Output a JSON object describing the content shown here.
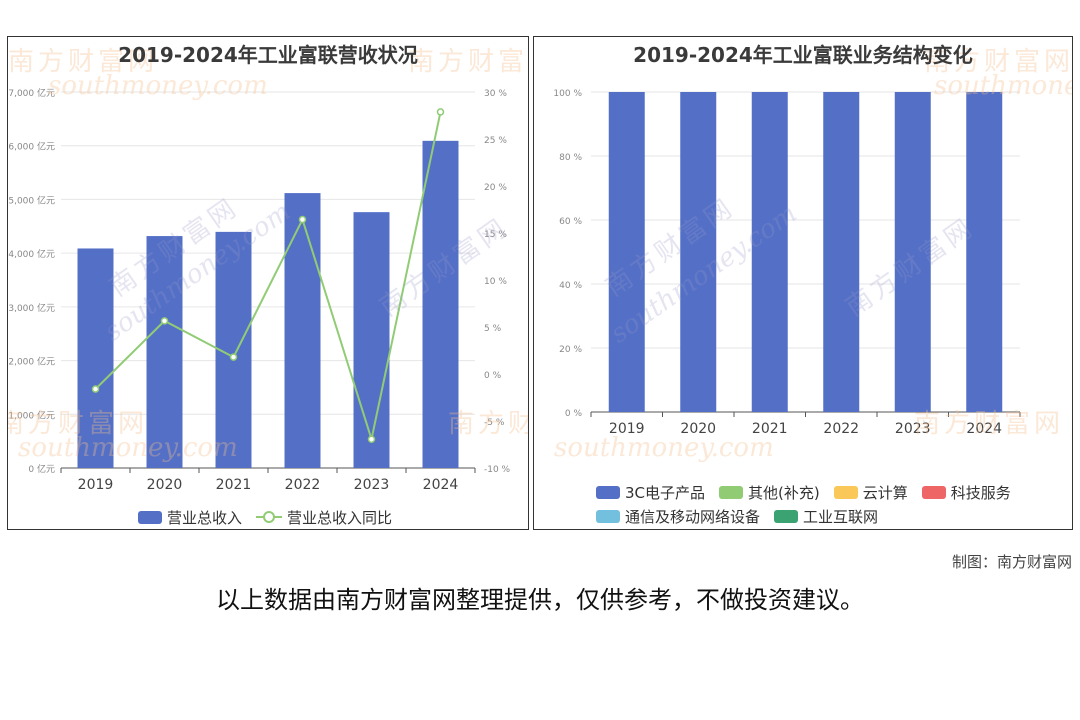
{
  "charts": {
    "left": {
      "title": "2019-2024年工业富联营收状况"
    },
    "right": {
      "title": "2019-2024年工业富联业务结构变化"
    }
  },
  "watermark": {
    "brand": "南方财富网",
    "domain": "southmoney.com"
  },
  "footer": {
    "credit": "制图：南方财富网",
    "disclaimer": "以上数据由南方财富网整理提供，仅供参考，不做投资建议。"
  },
  "colors": {
    "bar": "#5470c6",
    "line": "#91cc75",
    "cloud": "#fac858",
    "tech": "#ee6666",
    "telecom": "#73c0de",
    "iiot": "#3ba272"
  },
  "chart_data": [
    {
      "type": "bar",
      "title": "2019-2024年工业富联营收状况",
      "categories": [
        "2019",
        "2020",
        "2021",
        "2022",
        "2023",
        "2024"
      ],
      "series": [
        {
          "name": "营业总收入",
          "type": "bar",
          "axis": "left",
          "values": [
            4087,
            4318,
            4396,
            5118,
            4763,
            6091
          ]
        },
        {
          "name": "营业总收入同比",
          "type": "line",
          "axis": "right",
          "values": [
            -1.6,
            5.65,
            1.8,
            16.43,
            -6.94,
            27.88
          ]
        }
      ],
      "y_left": {
        "ticks": [
          "0 亿元",
          "1,000 亿元",
          "2,000 亿元",
          "3,000 亿元",
          "4,000 亿元",
          "5,000 亿元",
          "6,000 亿元",
          "7,000 亿元"
        ],
        "range": [
          0,
          7000
        ]
      },
      "y_right": {
        "ticks": [
          "-10 %",
          "-5 %",
          "0 %",
          "5 %",
          "10 %",
          "15 %",
          "20 %",
          "25 %",
          "30 %"
        ],
        "range": [
          -10,
          30
        ]
      },
      "grid": true,
      "legend": "bottom"
    },
    {
      "type": "bar",
      "title": "2019-2024年工业富联业务结构变化",
      "stacked": true,
      "categories": [
        "2019",
        "2020",
        "2021",
        "2022",
        "2023",
        "2024"
      ],
      "series": [
        {
          "name": "3C电子产品",
          "values": [
            100,
            100,
            100,
            100,
            100,
            100
          ]
        },
        {
          "name": "其他(补充)",
          "values": [
            0,
            0,
            0,
            0,
            0,
            0
          ]
        },
        {
          "name": "云计算",
          "values": [
            0,
            0,
            0,
            0,
            0,
            0
          ]
        },
        {
          "name": "科技服务",
          "values": [
            0,
            0,
            0,
            0,
            0,
            0
          ]
        },
        {
          "name": "通信及移动网络设备",
          "values": [
            0,
            0,
            0,
            0,
            0,
            0
          ]
        },
        {
          "name": "工业互联网",
          "values": [
            0,
            0,
            0,
            0,
            0,
            0
          ]
        }
      ],
      "y": {
        "ticks": [
          "0 %",
          "20 %",
          "40 %",
          "60 %",
          "80 %",
          "100 %"
        ],
        "range": [
          0,
          100
        ]
      },
      "grid": true,
      "legend": "bottom"
    }
  ]
}
